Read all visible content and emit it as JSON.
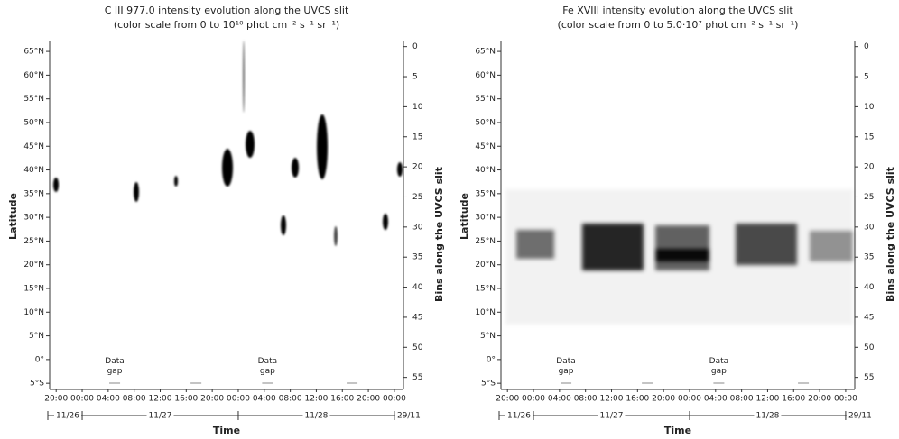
{
  "chart_data": [
    {
      "type": "intensity-map",
      "title": "C III 977.0 intensity evolution along the UVCS slit",
      "subtitle": "(color scale from 0 to 10¹⁰ phot cm⁻² s⁻¹ sr⁻¹)",
      "y_label": "Latitude",
      "y2_label": "Bins along the UVCS slit",
      "x_label": "Time",
      "ylim": [
        -6.3,
        67.3
      ],
      "yticks": [
        {
          "value": 65,
          "label": "65°N"
        },
        {
          "value": 60,
          "label": "60°N"
        },
        {
          "value": 55,
          "label": "55°N"
        },
        {
          "value": 50,
          "label": "50°N"
        },
        {
          "value": 45,
          "label": "45°N"
        },
        {
          "value": 40,
          "label": "40°N"
        },
        {
          "value": 35,
          "label": "35°N"
        },
        {
          "value": 30,
          "label": "30°N"
        },
        {
          "value": 25,
          "label": "25°N"
        },
        {
          "value": 20,
          "label": "20°N"
        },
        {
          "value": 15,
          "label": "15°N"
        },
        {
          "value": 10,
          "label": "10°N"
        },
        {
          "value": 5,
          "label": "5°N"
        },
        {
          "value": 0,
          "label": "0°"
        },
        {
          "value": -5,
          "label": "5°S"
        }
      ],
      "y2lim": [
        57,
        -1
      ],
      "y2ticks": [
        0,
        5,
        10,
        15,
        20,
        25,
        30,
        35,
        40,
        45,
        50,
        55
      ],
      "xlim": [
        19,
        73.4
      ],
      "xticks": [
        {
          "value": 20,
          "label": "20:00"
        },
        {
          "value": 24,
          "label": "00:00"
        },
        {
          "value": 28,
          "label": "04:00"
        },
        {
          "value": 32,
          "label": "08:00"
        },
        {
          "value": 36,
          "label": "12:00"
        },
        {
          "value": 40,
          "label": "16:00"
        },
        {
          "value": 44,
          "label": "20:00"
        },
        {
          "value": 48,
          "label": "00:00"
        },
        {
          "value": 52,
          "label": "04:00"
        },
        {
          "value": 56,
          "label": "08:00"
        },
        {
          "value": 60,
          "label": "12:00"
        },
        {
          "value": 64,
          "label": "16:00"
        },
        {
          "value": 68,
          "label": "20:00"
        },
        {
          "value": 72,
          "label": "00:00"
        }
      ],
      "dates": [
        "11/26",
        "11/27",
        "11/28",
        "29/11"
      ],
      "annotations": [
        "Data gap",
        "Data gap"
      ]
    },
    {
      "type": "intensity-map",
      "title": "Fe XVIII intensity evolution along the UVCS slit",
      "subtitle": "(color scale from 0 to 5.0·10⁷ phot cm⁻² s⁻¹ sr⁻¹)",
      "y_label": "Latitude",
      "y2_label": "Bins along the UVCS slit",
      "x_label": "Time",
      "ylim": [
        -6.3,
        67.3
      ],
      "yticks": [
        {
          "value": 65,
          "label": "65°N"
        },
        {
          "value": 60,
          "label": "60°N"
        },
        {
          "value": 55,
          "label": "55°N"
        },
        {
          "value": 50,
          "label": "50°N"
        },
        {
          "value": 45,
          "label": "45°N"
        },
        {
          "value": 40,
          "label": "40°N"
        },
        {
          "value": 35,
          "label": "35°N"
        },
        {
          "value": 30,
          "label": "30°N"
        },
        {
          "value": 25,
          "label": "25°N"
        },
        {
          "value": 20,
          "label": "20°N"
        },
        {
          "value": 15,
          "label": "15°N"
        },
        {
          "value": 10,
          "label": "10°N"
        },
        {
          "value": 5,
          "label": "5°N"
        },
        {
          "value": 0,
          "label": "0°"
        },
        {
          "value": -5,
          "label": "5°S"
        }
      ],
      "y2lim": [
        57,
        -1
      ],
      "y2ticks": [
        0,
        5,
        10,
        15,
        20,
        25,
        30,
        35,
        40,
        45,
        50,
        55
      ],
      "xlim": [
        19,
        73.4
      ],
      "xticks": [
        {
          "value": 20,
          "label": "20:00"
        },
        {
          "value": 24,
          "label": "00:00"
        },
        {
          "value": 28,
          "label": "04:00"
        },
        {
          "value": 32,
          "label": "08:00"
        },
        {
          "value": 36,
          "label": "12:00"
        },
        {
          "value": 40,
          "label": "16:00"
        },
        {
          "value": 44,
          "label": "20:00"
        },
        {
          "value": 48,
          "label": "00:00"
        },
        {
          "value": 52,
          "label": "04:00"
        },
        {
          "value": 56,
          "label": "08:00"
        },
        {
          "value": 60,
          "label": "12:00"
        },
        {
          "value": 64,
          "label": "16:00"
        },
        {
          "value": 68,
          "label": "20:00"
        },
        {
          "value": 72,
          "label": "00:00"
        }
      ],
      "dates": [
        "11/26",
        "11/27",
        "11/28",
        "29/11"
      ],
      "annotations": [
        "Data gap",
        "Data gap"
      ]
    }
  ]
}
